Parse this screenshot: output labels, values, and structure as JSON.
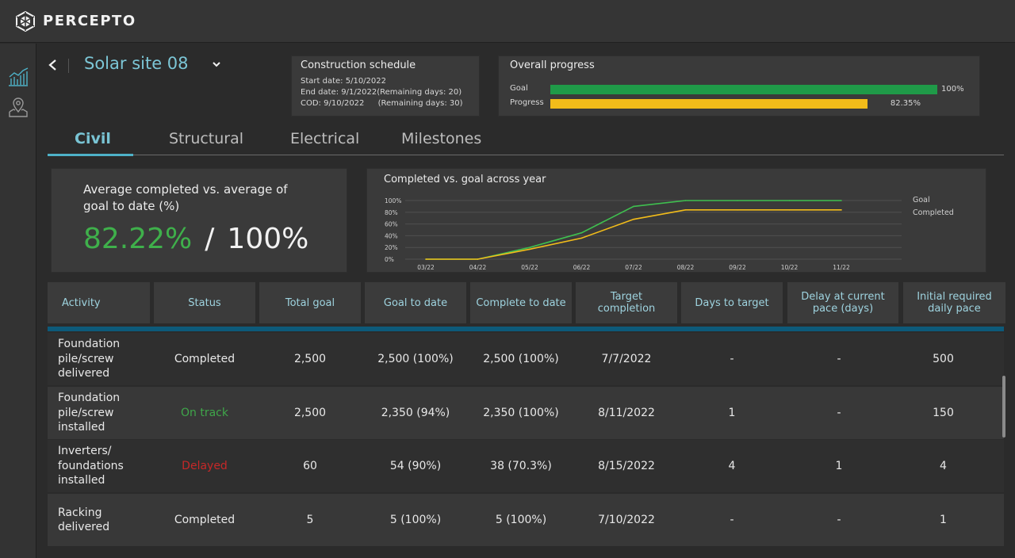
{
  "app": {
    "brand": "PERCEPTO"
  },
  "header": {
    "site_title": "Solar site 08"
  },
  "schedule": {
    "title": "Construction schedule",
    "start_label": "Start date:",
    "start": "5/10/2022",
    "end_label": "End date:",
    "end": "9/1/2022(Remaining days: 20)",
    "cod_label": "COD:",
    "cod": "9/10/2022",
    "cod_remaining": "(Remaining days: 30)"
  },
  "overall": {
    "title": "Overall progress",
    "goal_label": "Goal",
    "goal_value": "100%",
    "goal_fraction": 1.0,
    "progress_label": "Progress",
    "progress_value": "82.35%",
    "progress_fraction": 0.8235,
    "goal_color": "#1f9a48",
    "progress_color": "#f2bc1a"
  },
  "tabs": [
    {
      "label": "Civil"
    },
    {
      "label": "Structural"
    },
    {
      "label": "Electrical"
    },
    {
      "label": "Milestones"
    }
  ],
  "kpi": {
    "title": "Average completed vs. average of goal to date (%)",
    "completed": "82.22%",
    "slash": "/",
    "goal": "100%"
  },
  "chart_data": {
    "type": "line",
    "title": "Completed vs. goal across year",
    "categories": [
      "03/22",
      "04/22",
      "05/22",
      "06/22",
      "07/22",
      "08/22",
      "09/22",
      "10/22",
      "11/22"
    ],
    "y_ticks": [
      "100%",
      "80%",
      "60%",
      "40%",
      "20%",
      "0%"
    ],
    "ylim": [
      0,
      100
    ],
    "grid": true,
    "legend": "right",
    "series": [
      {
        "name": "Goal",
        "color": "#3fbf4f",
        "x": [
          0,
          1,
          2,
          3,
          4,
          5,
          6,
          7,
          8
        ],
        "values": [
          0,
          0,
          20,
          45,
          90,
          100,
          100,
          100,
          100
        ]
      },
      {
        "name": "Completed",
        "color": "#f2bc1a",
        "x": [
          0,
          1,
          2,
          3,
          4,
          5,
          6,
          7,
          8
        ],
        "values": [
          0,
          0,
          17,
          36,
          68,
          84,
          84,
          84,
          84
        ]
      }
    ]
  },
  "table": {
    "headers": [
      "Activity",
      "Status",
      "Total goal",
      "Goal to date",
      "Complete to date",
      "Target completion",
      "Days to target",
      "Delay at current pace (days)",
      "Initial required daily pace"
    ],
    "rows": [
      {
        "activity": "Foundation pile/screw delivered",
        "status": "Completed",
        "status_kind": "completed",
        "total": "2,500",
        "goal_to_date": "2,500 (100%)",
        "complete": "2,500 (100%)",
        "target": "7/7/2022",
        "days": "-",
        "delay": "-",
        "pace": "500"
      },
      {
        "activity": "Foundation pile/screw installed",
        "status": "On track",
        "status_kind": "ontrack",
        "total": "2,500",
        "goal_to_date": "2,350 (94%)",
        "complete": "2,350 (100%)",
        "target": "8/11/2022",
        "days": "1",
        "delay": "-",
        "pace": "150"
      },
      {
        "activity": "Inverters/ foundations installed",
        "status": "Delayed",
        "status_kind": "delayed",
        "total": "60",
        "goal_to_date": "54 (90%)",
        "complete": "38 (70.3%)",
        "target": "8/15/2022",
        "days": "4",
        "delay": "1",
        "pace": "4"
      },
      {
        "activity": "Racking delivered",
        "status": "Completed",
        "status_kind": "completed",
        "total": "5",
        "goal_to_date": "5 (100%)",
        "complete": "5 (100%)",
        "target": "7/10/2022",
        "days": "-",
        "delay": "-",
        "pace": "1"
      }
    ]
  }
}
